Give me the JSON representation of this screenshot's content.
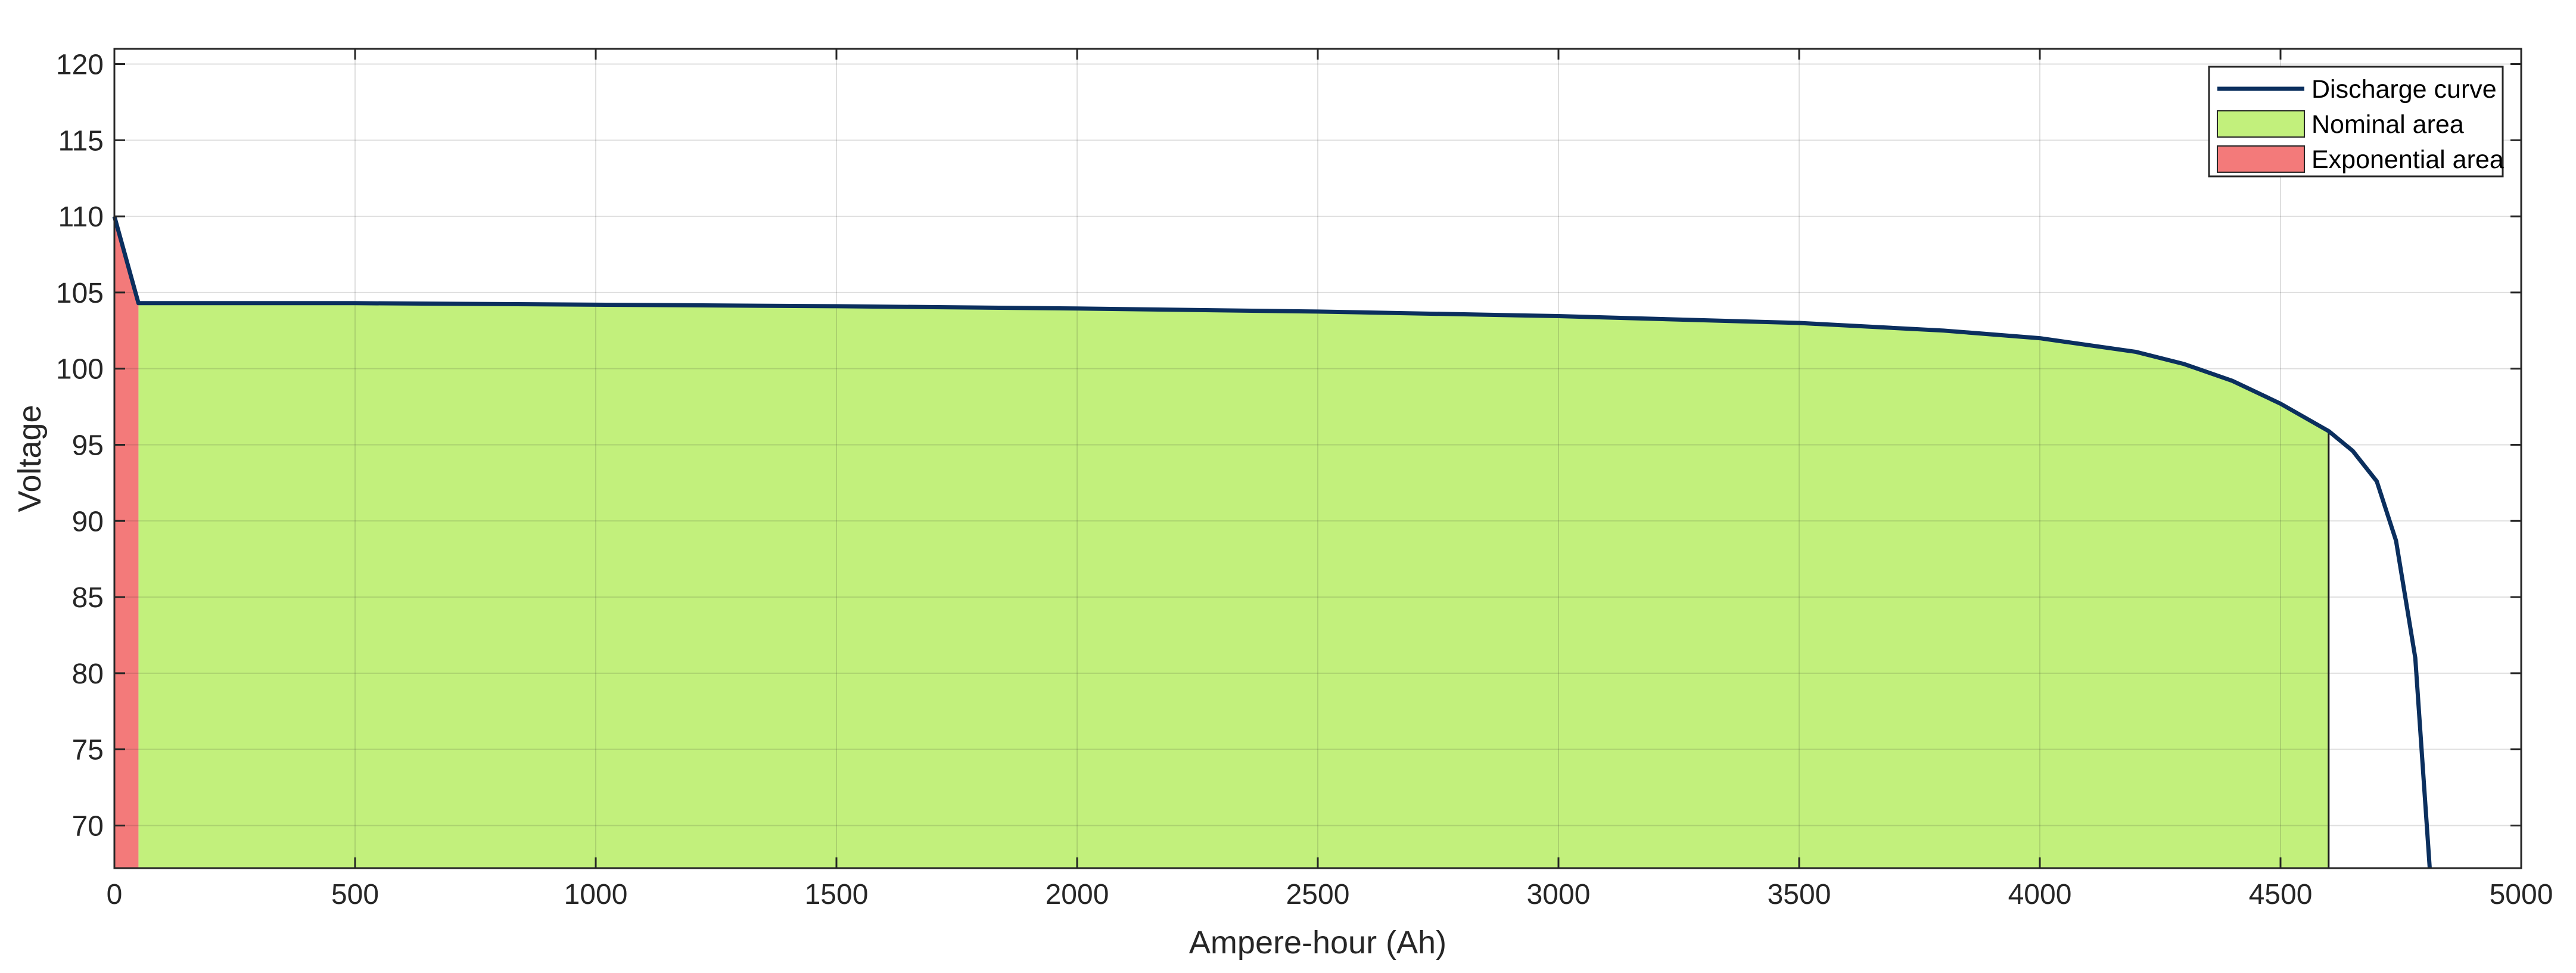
{
  "chart_data": {
    "type": "area",
    "title": "",
    "xlabel": "Ampere-hour (Ah)",
    "ylabel": "Voltage",
    "xlim": [
      0,
      5000
    ],
    "ylim": [
      67.2,
      121
    ],
    "xticks": [
      0,
      500,
      1000,
      1500,
      2000,
      2500,
      3000,
      3500,
      4000,
      4500,
      5000
    ],
    "yticks": [
      70,
      75,
      80,
      85,
      90,
      95,
      100,
      105,
      110,
      115,
      120
    ],
    "grid": true,
    "legend_position": "top-right",
    "series": [
      {
        "name": "Discharge curve",
        "kind": "line",
        "color": "#0b2f5e",
        "x": [
          0,
          50,
          500,
          1000,
          1500,
          2000,
          2500,
          3000,
          3500,
          3800,
          4000,
          4200,
          4300,
          4400,
          4500,
          4550,
          4600,
          4650,
          4700,
          4740,
          4780,
          4810
        ],
        "y": [
          110,
          104.3,
          104.3,
          104.2,
          104.1,
          103.95,
          103.75,
          103.45,
          103.0,
          102.5,
          102.0,
          101.1,
          100.3,
          99.2,
          97.7,
          96.8,
          95.9,
          94.6,
          92.6,
          88.7,
          81.0,
          67.2
        ]
      },
      {
        "name": "Nominal area",
        "kind": "area",
        "color": "#c2f07c",
        "x": [
          50,
          500,
          1000,
          1500,
          2000,
          2500,
          3000,
          3500,
          3800,
          4000,
          4200,
          4300,
          4400,
          4500,
          4550,
          4600
        ],
        "y": [
          104.3,
          104.3,
          104.2,
          104.1,
          103.95,
          103.75,
          103.45,
          103.0,
          102.5,
          102.0,
          101.1,
          100.3,
          99.2,
          97.7,
          96.8,
          95.9
        ]
      },
      {
        "name": "Exponential area",
        "kind": "area",
        "color": "#f37a7a",
        "x": [
          0,
          50
        ],
        "y": [
          110,
          104.3
        ]
      }
    ]
  }
}
